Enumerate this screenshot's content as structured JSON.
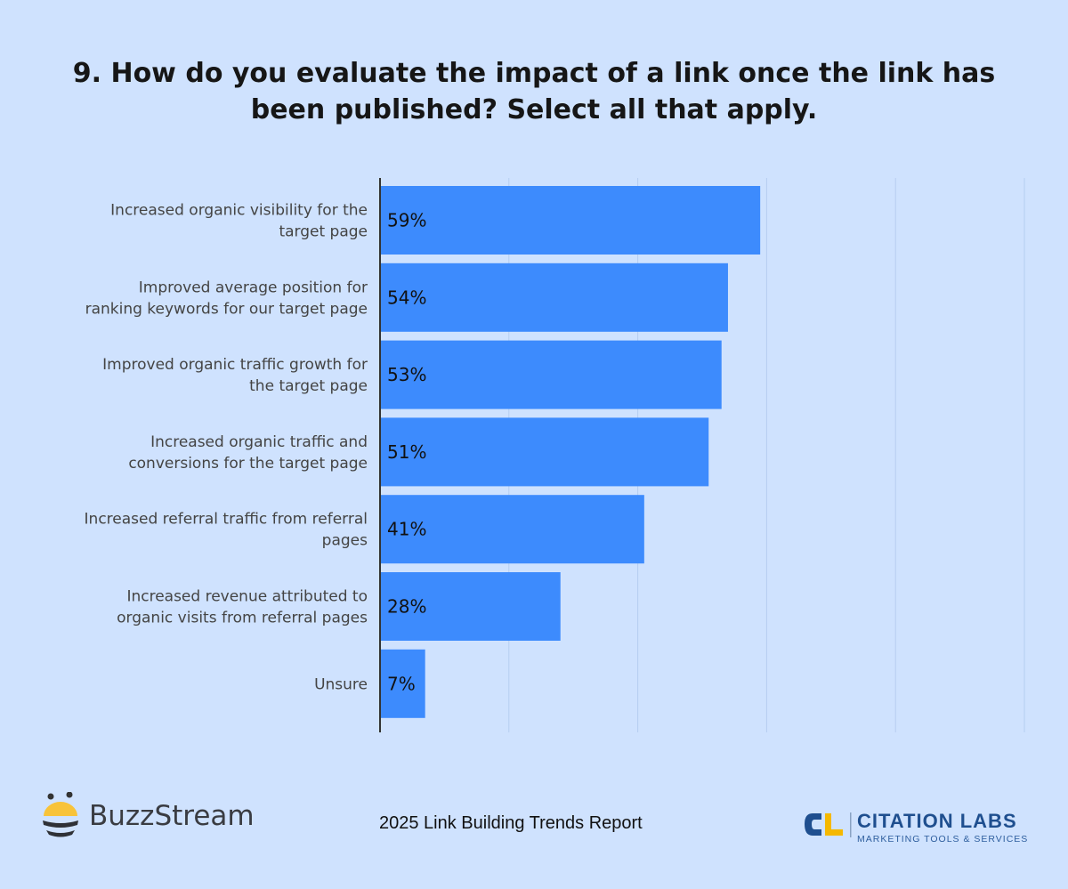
{
  "title": "9. How do you evaluate the impact of a link once the link has been published? Select all that apply.",
  "chart_data": {
    "type": "bar",
    "orientation": "horizontal",
    "categories": [
      [
        "Increased organic visibility for the",
        "target page"
      ],
      [
        "Improved average position for",
        "ranking keywords for our target page"
      ],
      [
        "Improved organic traffic growth for",
        "the target page"
      ],
      [
        "Increased organic traffic and",
        "conversions for the target page"
      ],
      [
        "Increased referral traffic from referral",
        "pages"
      ],
      [
        "Increased revenue attributed to",
        "organic visits from referral pages"
      ],
      [
        "Unsure"
      ]
    ],
    "values": [
      59,
      54,
      53,
      51,
      41,
      28,
      7
    ],
    "value_labels": [
      "59%",
      "54%",
      "53%",
      "51%",
      "41%",
      "28%",
      "7%"
    ],
    "xlim": [
      0,
      100
    ],
    "gridlines": [
      20,
      40,
      60,
      80,
      100
    ],
    "grid": true,
    "bar_color": "#3d8bfd"
  },
  "footer": {
    "report": "2025 Link Building Trends Report",
    "logo_left": "BuzzStream",
    "logo_right_name": "CITATION LABS",
    "logo_right_sub": "MARKETING TOOLS & SERVICES"
  }
}
